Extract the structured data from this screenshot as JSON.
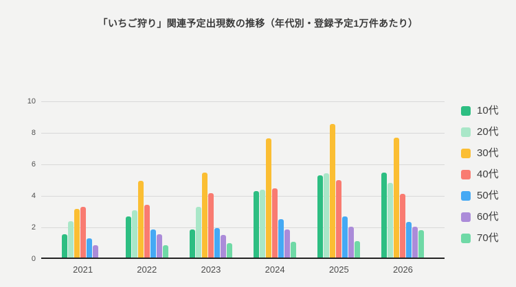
{
  "page": {
    "background": "#f3f3f2"
  },
  "chart_data": {
    "type": "bar",
    "title": "「いちご狩り」関連予定出現数の推移（年代別・登録予定1万件あたり）",
    "categories": [
      "2021",
      "2022",
      "2023",
      "2024",
      "2025",
      "2026"
    ],
    "series": [
      {
        "name": "10代",
        "color": "#2dbe82",
        "values": [
          1.5,
          2.6,
          1.8,
          4.2,
          5.2,
          5.4
        ]
      },
      {
        "name": "20代",
        "color": "#a9e7c8",
        "values": [
          2.3,
          3.0,
          3.2,
          4.3,
          5.35,
          4.75
        ]
      },
      {
        "name": "30代",
        "color": "#fbbe33",
        "values": [
          3.1,
          4.85,
          5.4,
          7.55,
          8.5,
          7.6
        ]
      },
      {
        "name": "40代",
        "color": "#f97b71",
        "values": [
          3.2,
          3.35,
          4.1,
          4.4,
          4.9,
          4.05
        ]
      },
      {
        "name": "50代",
        "color": "#45a9f4",
        "values": [
          1.2,
          1.8,
          1.85,
          2.45,
          2.6,
          2.25
        ]
      },
      {
        "name": "60代",
        "color": "#ab8bd9",
        "values": [
          0.8,
          1.5,
          1.45,
          1.8,
          1.95,
          1.95
        ]
      },
      {
        "name": "70代",
        "color": "#6fd9a6",
        "values": [
          0,
          0.8,
          0.9,
          1.0,
          1.05,
          1.75
        ]
      }
    ],
    "xlabel": "",
    "ylabel": "",
    "ylim": [
      0,
      10
    ],
    "yticks": [
      0,
      2,
      4,
      6,
      8,
      10
    ],
    "grid": true,
    "legend_position": "right",
    "style": {
      "grid_color": "#d8d8d8",
      "axis_line_color": "#222222",
      "title_color": "#3a3a3a",
      "tick_label_color": "#4e4e4e"
    }
  }
}
